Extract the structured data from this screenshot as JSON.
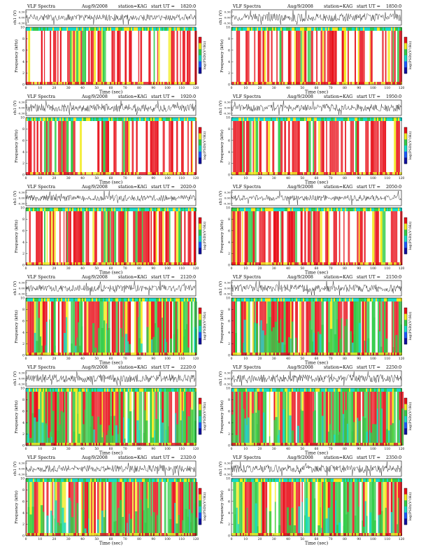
{
  "page": {
    "title_prefix": "VLF Spectra",
    "date": "Aug/9/2008",
    "station": "station=KAG",
    "ut_prefix": "start UT =",
    "ch_axis_label": "ch1 (V)",
    "ch_ticks": [
      "0.30",
      "0.00",
      "-0.30"
    ],
    "freq_axis_label": "Frequency (kHz)",
    "freq_ticks": [
      "0",
      "2",
      "4",
      "6",
      "8",
      "10"
    ],
    "time_axis_label": "Time (sec)",
    "time_ticks": [
      "0",
      "10",
      "20",
      "30",
      "40",
      "50",
      "60",
      "70",
      "80",
      "90",
      "100",
      "110",
      "120"
    ],
    "colorbar_label": "log(PSD)(V²/Hz)"
  },
  "colors": {
    "red": "#e8101a",
    "yellow": "#f2ea1c",
    "green": "#33cc4a",
    "cyan": "#17dcc8",
    "blue": "#1a5cff",
    "dark_blue": "#1010a0",
    "waveform": "#222222"
  },
  "chart_data": [
    {
      "type": "heatmap",
      "start_ut": "1820:0",
      "title": "VLF Spectra",
      "xlabel": "Time (sec)",
      "ylabel": "Frequency (kHz)",
      "xlim": [
        0,
        120
      ],
      "ylim": [
        0,
        10
      ],
      "color_mix": {
        "white": 0.48,
        "red": 0.4,
        "yellow": 0.06,
        "green": 0.06
      },
      "wave_amp": 0.25
    },
    {
      "type": "heatmap",
      "start_ut": "1850:0",
      "title": "VLF Spectra",
      "xlabel": "Time (sec)",
      "ylabel": "Frequency (kHz)",
      "xlim": [
        0,
        120
      ],
      "ylim": [
        0,
        10
      ],
      "color_mix": {
        "white": 0.5,
        "red": 0.38,
        "yellow": 0.06,
        "green": 0.06
      },
      "wave_amp": 0.3
    },
    {
      "type": "heatmap",
      "start_ut": "1920:0",
      "title": "VLF Spectra",
      "xlabel": "Time (sec)",
      "ylabel": "Frequency (kHz)",
      "xlim": [
        0,
        120
      ],
      "ylim": [
        0,
        10
      ],
      "color_mix": {
        "white": 0.46,
        "red": 0.4,
        "yellow": 0.07,
        "green": 0.07
      },
      "wave_amp": 0.3
    },
    {
      "type": "heatmap",
      "start_ut": "1950:0",
      "title": "VLF Spectra",
      "xlabel": "Time (sec)",
      "ylabel": "Frequency (kHz)",
      "xlim": [
        0,
        120
      ],
      "ylim": [
        0,
        10
      ],
      "color_mix": {
        "white": 0.48,
        "red": 0.38,
        "yellow": 0.07,
        "green": 0.07
      },
      "wave_amp": 0.28
    },
    {
      "type": "heatmap",
      "start_ut": "2020:0",
      "title": "VLF Spectra",
      "xlabel": "Time (sec)",
      "ylabel": "Frequency (kHz)",
      "xlim": [
        0,
        120
      ],
      "ylim": [
        0,
        10
      ],
      "color_mix": {
        "white": 0.3,
        "red": 0.5,
        "yellow": 0.1,
        "green": 0.1
      },
      "wave_amp": 0.25
    },
    {
      "type": "heatmap",
      "start_ut": "2050:0",
      "title": "VLF Spectra",
      "xlabel": "Time (sec)",
      "ylabel": "Frequency (kHz)",
      "xlim": [
        0,
        120
      ],
      "ylim": [
        0,
        10
      ],
      "color_mix": {
        "white": 0.3,
        "red": 0.5,
        "yellow": 0.1,
        "green": 0.1
      },
      "wave_amp": 0.22
    },
    {
      "type": "heatmap",
      "start_ut": "2120:0",
      "title": "VLF Spectra",
      "xlabel": "Time (sec)",
      "ylabel": "Frequency (kHz)",
      "xlim": [
        0,
        120
      ],
      "ylim": [
        0,
        10
      ],
      "color_mix": {
        "white": 0.15,
        "red": 0.45,
        "yellow": 0.15,
        "green": 0.25
      },
      "wave_amp": 0.25
    },
    {
      "type": "heatmap",
      "start_ut": "2150:0",
      "title": "VLF Spectra",
      "xlabel": "Time (sec)",
      "ylabel": "Frequency (kHz)",
      "xlim": [
        0,
        120
      ],
      "ylim": [
        0,
        10
      ],
      "color_mix": {
        "white": 0.15,
        "red": 0.45,
        "yellow": 0.15,
        "green": 0.25
      },
      "wave_amp": 0.28
    },
    {
      "type": "heatmap",
      "start_ut": "2220:0",
      "title": "VLF Spectra",
      "xlabel": "Time (sec)",
      "ylabel": "Frequency (kHz)",
      "xlim": [
        0,
        120
      ],
      "ylim": [
        0,
        10
      ],
      "color_mix": {
        "white": 0.1,
        "red": 0.4,
        "yellow": 0.15,
        "green": 0.35
      },
      "wave_amp": 0.3
    },
    {
      "type": "heatmap",
      "start_ut": "2250:0",
      "title": "VLF Spectra",
      "xlabel": "Time (sec)",
      "ylabel": "Frequency (kHz)",
      "xlim": [
        0,
        120
      ],
      "ylim": [
        0,
        10
      ],
      "color_mix": {
        "white": 0.1,
        "red": 0.4,
        "yellow": 0.15,
        "green": 0.35
      },
      "wave_amp": 0.3
    },
    {
      "type": "heatmap",
      "start_ut": "2320:0",
      "title": "VLF Spectra",
      "xlabel": "Time (sec)",
      "ylabel": "Frequency (kHz)",
      "xlim": [
        0,
        120
      ],
      "ylim": [
        0,
        10
      ],
      "color_mix": {
        "white": 0.08,
        "red": 0.4,
        "yellow": 0.14,
        "green": 0.38
      },
      "wave_amp": 0.26
    },
    {
      "type": "heatmap",
      "start_ut": "2350:0",
      "title": "VLF Spectra",
      "xlabel": "Time (sec)",
      "ylabel": "Frequency (kHz)",
      "xlim": [
        0,
        120
      ],
      "ylim": [
        0,
        10
      ],
      "color_mix": {
        "white": 0.1,
        "red": 0.42,
        "yellow": 0.14,
        "green": 0.34
      },
      "wave_amp": 0.3
    }
  ]
}
